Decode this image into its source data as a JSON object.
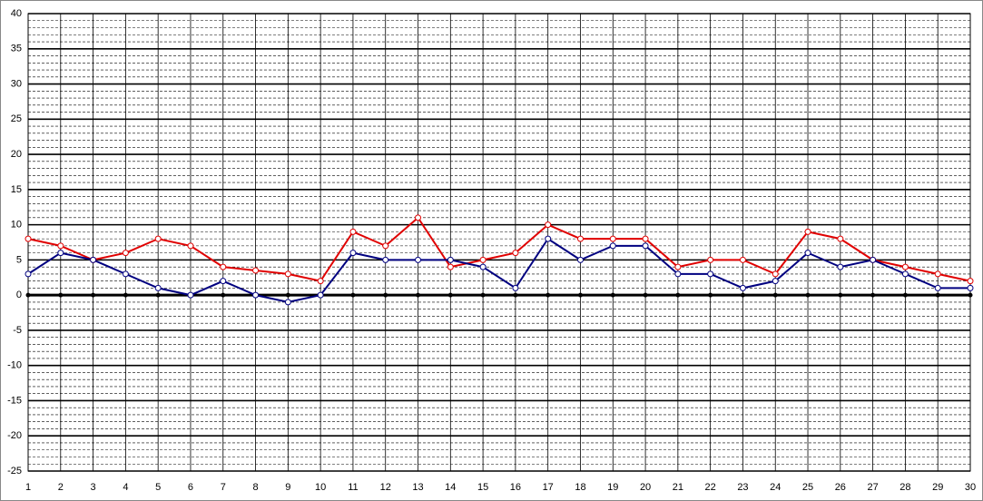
{
  "chart_data": {
    "type": "line",
    "x": [
      1,
      2,
      3,
      4,
      5,
      6,
      7,
      8,
      9,
      10,
      11,
      12,
      13,
      14,
      15,
      16,
      17,
      18,
      19,
      20,
      21,
      22,
      23,
      24,
      25,
      26,
      27,
      28,
      29,
      30
    ],
    "xlim": [
      1,
      30
    ],
    "xticks": [
      1,
      2,
      3,
      4,
      5,
      6,
      7,
      8,
      9,
      10,
      11,
      12,
      13,
      14,
      15,
      16,
      17,
      18,
      19,
      20,
      21,
      22,
      23,
      24,
      25,
      26,
      27,
      28,
      29,
      30
    ],
    "ylim": [
      -25,
      40
    ],
    "yticks": [
      -25,
      -20,
      -15,
      -10,
      -5,
      0,
      5,
      10,
      15,
      20,
      25,
      30,
      35,
      40
    ],
    "grid": true,
    "minor_grid_step": 1,
    "series": [
      {
        "color": "#e00000",
        "values": [
          8,
          7,
          5,
          6,
          8,
          7,
          4,
          3.5,
          3,
          2,
          9,
          7,
          11,
          4,
          5,
          6,
          10,
          8,
          8,
          8,
          4,
          5,
          5,
          3,
          9,
          8,
          5,
          4,
          3,
          2
        ]
      },
      {
        "color": "#000080",
        "values": [
          3,
          6,
          5,
          3,
          1,
          0,
          2,
          0,
          -1,
          0,
          6,
          5,
          5,
          5,
          4,
          1,
          8,
          5,
          7,
          7,
          3,
          3,
          1,
          2,
          6,
          4,
          5,
          3,
          1,
          1
        ]
      }
    ]
  }
}
